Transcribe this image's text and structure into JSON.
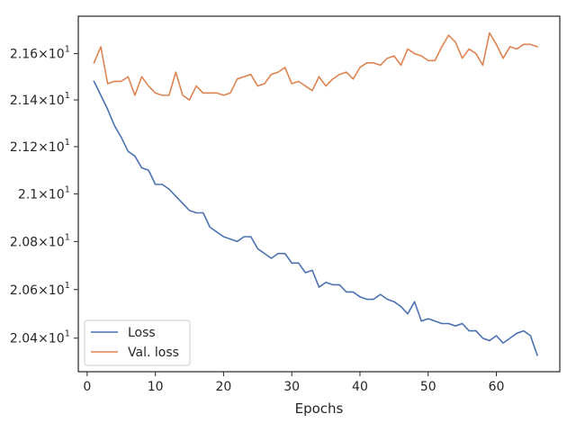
{
  "chart_data": {
    "type": "line",
    "title": "",
    "xlabel": "Epochs",
    "ylabel": "",
    "xlim": [
      -1.3,
      69.3
    ],
    "ylim": [
      20.263,
      21.763
    ],
    "y_scale": "log",
    "grid": false,
    "legend_position": "lower-left",
    "xticks": [
      {
        "value": 0,
        "label": "0"
      },
      {
        "value": 10,
        "label": "10"
      },
      {
        "value": 20,
        "label": "20"
      },
      {
        "value": 30,
        "label": "30"
      },
      {
        "value": 40,
        "label": "40"
      },
      {
        "value": 50,
        "label": "50"
      },
      {
        "value": 60,
        "label": "60"
      }
    ],
    "yticks": [
      {
        "value": 21.6,
        "mantissa": "2.16",
        "times": "×10",
        "exp": "1"
      },
      {
        "value": 21.4,
        "mantissa": "2.14",
        "times": "×10",
        "exp": "1"
      },
      {
        "value": 21.2,
        "mantissa": "2.12",
        "times": "×10",
        "exp": "1"
      },
      {
        "value": 21.0,
        "mantissa": "2.1",
        "times": "×10",
        "exp": "1"
      },
      {
        "value": 20.8,
        "mantissa": "2.08",
        "times": "×10",
        "exp": "1"
      },
      {
        "value": 20.6,
        "mantissa": "2.06",
        "times": "×10",
        "exp": "1"
      },
      {
        "value": 20.4,
        "mantissa": "2.04",
        "times": "×10",
        "exp": "1"
      }
    ],
    "x": [
      1,
      2,
      3,
      4,
      5,
      6,
      7,
      8,
      9,
      10,
      11,
      12,
      13,
      14,
      15,
      16,
      17,
      18,
      19,
      20,
      21,
      22,
      23,
      24,
      25,
      26,
      27,
      28,
      29,
      30,
      31,
      32,
      33,
      34,
      35,
      36,
      37,
      38,
      39,
      40,
      41,
      42,
      43,
      44,
      45,
      46,
      47,
      48,
      49,
      50,
      51,
      52,
      53,
      54,
      55,
      56,
      57,
      58,
      59,
      60,
      61,
      62,
      63,
      64,
      65,
      66
    ],
    "series": [
      {
        "name": "Loss",
        "color": "#4c72b0",
        "values": [
          21.48,
          21.42,
          21.36,
          21.29,
          21.24,
          21.18,
          21.16,
          21.11,
          21.1,
          21.04,
          21.04,
          21.02,
          20.99,
          20.96,
          20.93,
          20.92,
          20.92,
          20.86,
          20.84,
          20.82,
          20.81,
          20.8,
          20.82,
          20.82,
          20.77,
          20.75,
          20.73,
          20.75,
          20.75,
          20.71,
          20.71,
          20.67,
          20.68,
          20.61,
          20.63,
          20.62,
          20.62,
          20.59,
          20.59,
          20.57,
          20.56,
          20.56,
          20.58,
          20.56,
          20.55,
          20.53,
          20.5,
          20.55,
          20.47,
          20.48,
          20.47,
          20.46,
          20.46,
          20.45,
          20.46,
          20.43,
          20.43,
          20.4,
          20.39,
          20.41,
          20.38,
          20.4,
          20.42,
          20.43,
          20.41,
          20.33
        ]
      },
      {
        "name": "Val. loss",
        "color": "#dd8452",
        "values": [
          21.56,
          21.63,
          21.47,
          21.48,
          21.48,
          21.5,
          21.42,
          21.5,
          21.46,
          21.43,
          21.42,
          21.42,
          21.52,
          21.42,
          21.4,
          21.46,
          21.43,
          21.43,
          21.43,
          21.42,
          21.43,
          21.49,
          21.5,
          21.51,
          21.46,
          21.47,
          21.51,
          21.52,
          21.54,
          21.47,
          21.48,
          21.46,
          21.44,
          21.5,
          21.46,
          21.49,
          21.51,
          21.52,
          21.49,
          21.54,
          21.56,
          21.56,
          21.55,
          21.58,
          21.59,
          21.55,
          21.62,
          21.6,
          21.59,
          21.57,
          21.57,
          21.63,
          21.68,
          21.65,
          21.58,
          21.62,
          21.6,
          21.55,
          21.69,
          21.64,
          21.58,
          21.63,
          21.62,
          21.64,
          21.64,
          21.63
        ]
      }
    ]
  }
}
